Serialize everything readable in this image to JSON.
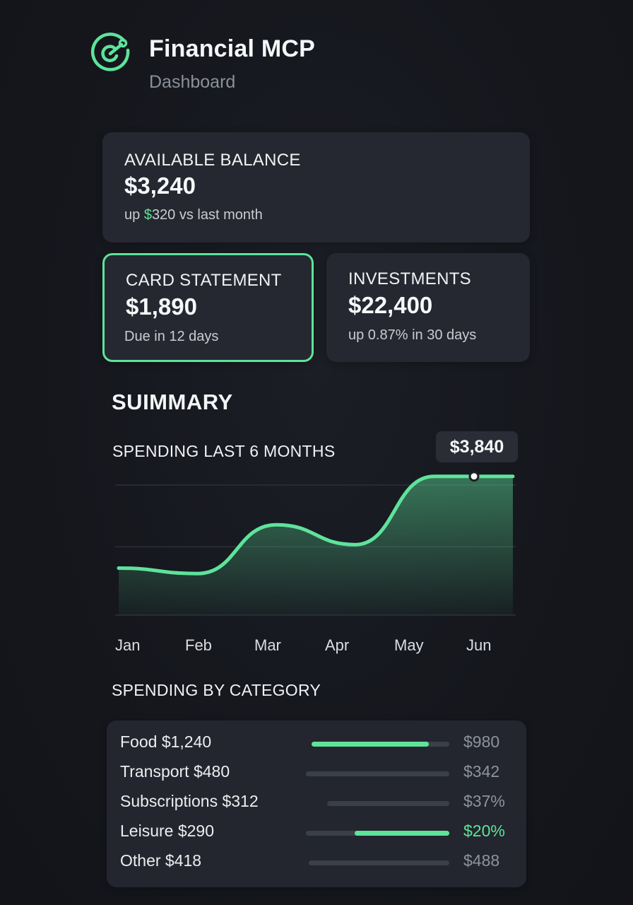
{
  "header": {
    "title": "Financial MCP",
    "subtitle": "Dashboard",
    "logo_icon": "target-swirl-icon"
  },
  "balance": {
    "label": "AVAILABLE BALANCE",
    "value": "$3,240",
    "note_prefix": "up ",
    "note_highlight": "$",
    "note_suffix": "320 vs last month"
  },
  "statement": {
    "label": "CARD STATEMENT",
    "value": "$1,890",
    "note": "Due in 12 days"
  },
  "investments": {
    "label": "INVESTMENTS",
    "value": "$22,400",
    "note": "up 0.87% in 30 days"
  },
  "summary": {
    "title": "SUIMMARY",
    "chart_title": "SPENDING LAST 6 MONTHS",
    "tooltip": "$3,840"
  },
  "chart_data": {
    "type": "area",
    "title": "SPENDING LAST 6 MONTHS",
    "categories": [
      "Jan",
      "Feb",
      "Mar",
      "Apr",
      "May",
      "Jun"
    ],
    "series": [
      {
        "values": [
          1300,
          1150,
          2500,
          1950,
          3840,
          3840
        ]
      }
    ],
    "highlight": {
      "category": "Jun",
      "label": "$3,840"
    },
    "ylim": [
      0,
      4500
    ],
    "grid": true,
    "accent": "#5ee39b"
  },
  "categories": {
    "title": "SPENDING BY CATEGORY",
    "items": [
      {
        "label": "Food $1,240",
        "value": "$980",
        "fill": 0.85,
        "highlight": true
      },
      {
        "label": "Transport $480",
        "value": "$342",
        "fill": 0.0,
        "highlight": false
      },
      {
        "label": "Subscriptions $312",
        "value": "$37%",
        "fill": 0.0,
        "highlight": false
      },
      {
        "label": "Leisure $290",
        "value": "$20%",
        "fill": 0.66,
        "highlight": true
      },
      {
        "label": "Other $418",
        "value": "$488",
        "fill": 0.0,
        "highlight": false
      }
    ]
  },
  "colors": {
    "accent": "#5ee39b",
    "background": "#15171d",
    "card": "#252830",
    "muted": "#8e939b"
  }
}
